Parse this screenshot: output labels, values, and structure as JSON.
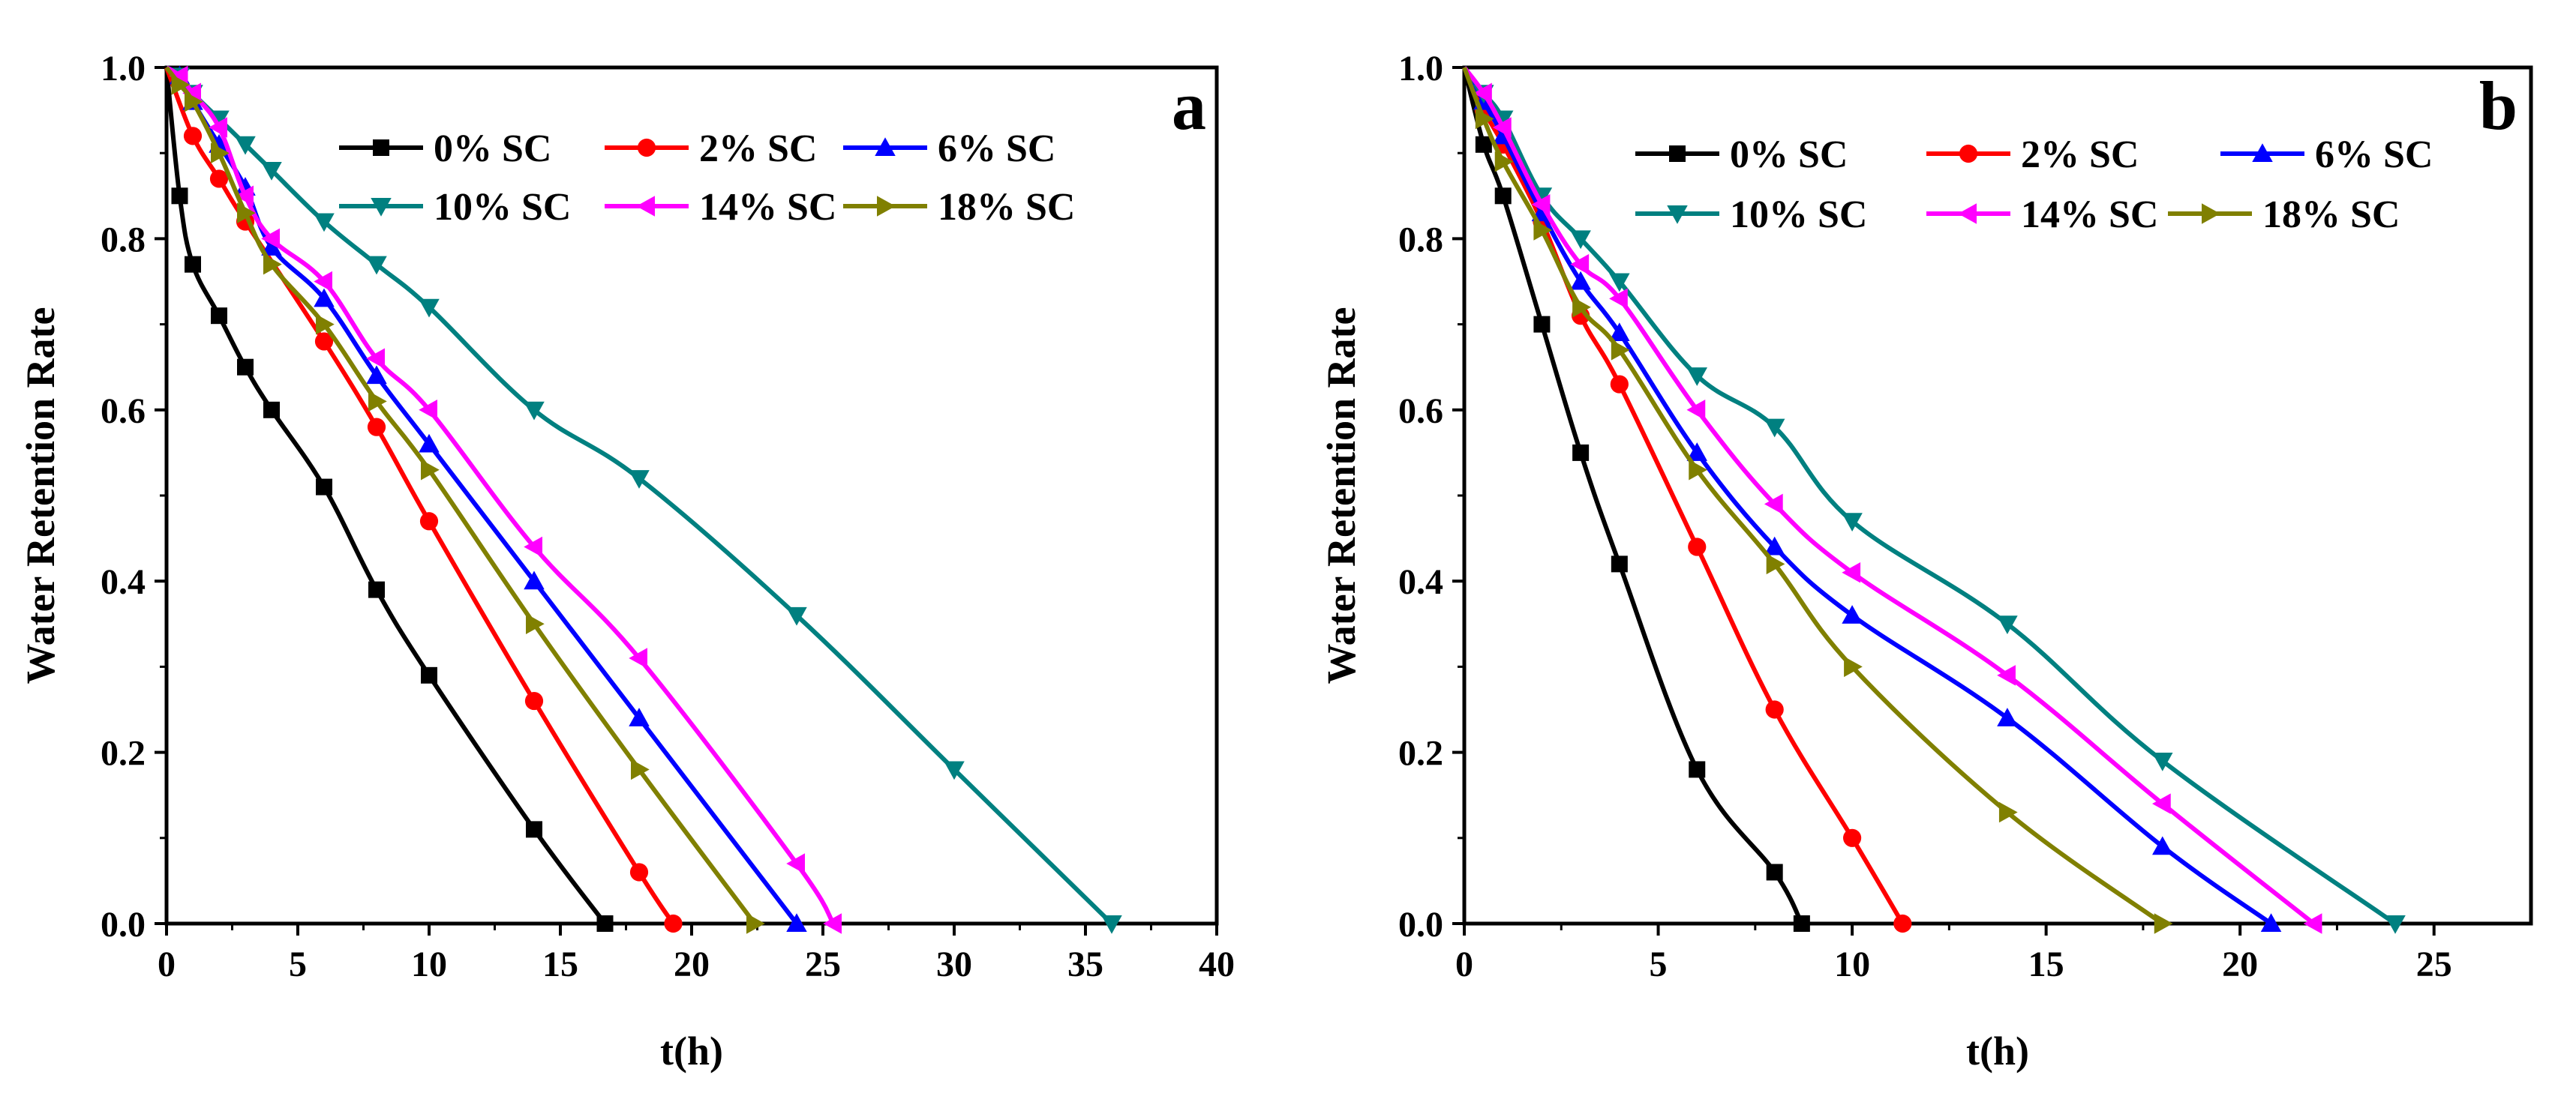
{
  "chart_data": [
    {
      "type": "line",
      "panel_label": "a",
      "xlabel": "t(h)",
      "ylabel": "Water Retention Rate",
      "xlim": [
        0,
        40
      ],
      "ylim": [
        0,
        1.0
      ],
      "xticks": [
        "0",
        "5",
        "10",
        "15",
        "20",
        "25",
        "30",
        "35",
        "40"
      ],
      "yticks": [
        "0.0",
        "0.2",
        "0.4",
        "0.6",
        "0.8",
        "1.0"
      ],
      "grid": false,
      "legend": "top-right",
      "series": [
        {
          "name": "0% SC",
          "color": "#000000",
          "marker": "square",
          "x": [
            0,
            0.5,
            1,
            2,
            3,
            4,
            6,
            8,
            10,
            14,
            16.7
          ],
          "y": [
            1.0,
            0.85,
            0.77,
            0.71,
            0.65,
            0.6,
            0.51,
            0.39,
            0.29,
            0.11,
            0.0
          ]
        },
        {
          "name": "2% SC",
          "color": "#ff0000",
          "marker": "circle",
          "x": [
            0,
            1,
            2,
            3,
            6,
            8,
            10,
            14,
            18,
            19.3
          ],
          "y": [
            1.0,
            0.92,
            0.87,
            0.82,
            0.68,
            0.58,
            0.47,
            0.26,
            0.06,
            0.0
          ]
        },
        {
          "name": "6% SC",
          "color": "#0000ff",
          "marker": "triangle-up",
          "x": [
            0,
            0.5,
            1,
            2,
            3,
            4,
            6,
            8,
            10,
            14,
            18,
            24
          ],
          "y": [
            1.0,
            0.99,
            0.96,
            0.91,
            0.86,
            0.79,
            0.73,
            0.64,
            0.56,
            0.4,
            0.24,
            0.0
          ]
        },
        {
          "name": "10% SC",
          "color": "#008080",
          "marker": "triangle-down",
          "x": [
            0,
            0.5,
            1,
            2,
            3,
            4,
            6,
            8,
            10,
            14,
            18,
            24,
            30,
            36
          ],
          "y": [
            1.0,
            0.99,
            0.97,
            0.94,
            0.91,
            0.88,
            0.82,
            0.77,
            0.72,
            0.6,
            0.52,
            0.36,
            0.18,
            0.0
          ]
        },
        {
          "name": "14% SC",
          "color": "#ff00ff",
          "marker": "triangle-left",
          "x": [
            0,
            0.5,
            1,
            2,
            3,
            4,
            6,
            8,
            10,
            14,
            18,
            24,
            25.4
          ],
          "y": [
            1.0,
            0.99,
            0.97,
            0.93,
            0.85,
            0.8,
            0.75,
            0.66,
            0.6,
            0.44,
            0.31,
            0.07,
            0.0
          ]
        },
        {
          "name": "18% SC",
          "color": "#808000",
          "marker": "triangle-right",
          "x": [
            0,
            0.5,
            1,
            2,
            3,
            4,
            6,
            8,
            10,
            14,
            18,
            22.4
          ],
          "y": [
            1.0,
            0.98,
            0.96,
            0.9,
            0.83,
            0.77,
            0.7,
            0.61,
            0.53,
            0.35,
            0.18,
            0.0
          ]
        }
      ]
    },
    {
      "type": "line",
      "panel_label": "b",
      "xlabel": "t(h)",
      "ylabel": "Water Retention Rate",
      "xlim": [
        0,
        27.5
      ],
      "ylim": [
        0,
        1.0
      ],
      "xticks": [
        "0",
        "5",
        "10",
        "15",
        "20",
        "25"
      ],
      "yticks": [
        "0.0",
        "0.2",
        "0.4",
        "0.6",
        "0.8",
        "1.0"
      ],
      "grid": false,
      "legend": "top-right",
      "series": [
        {
          "name": "0% SC",
          "color": "#000000",
          "marker": "square",
          "x": [
            0,
            0.5,
            1,
            2,
            3,
            4,
            6,
            8,
            8.7
          ],
          "y": [
            1.0,
            0.91,
            0.85,
            0.7,
            0.55,
            0.42,
            0.18,
            0.06,
            0.0
          ]
        },
        {
          "name": "2% SC",
          "color": "#ff0000",
          "marker": "circle",
          "x": [
            0,
            0.5,
            1,
            2,
            3,
            4,
            6,
            8,
            10,
            11.3
          ],
          "y": [
            1.0,
            0.95,
            0.91,
            0.82,
            0.71,
            0.63,
            0.44,
            0.25,
            0.1,
            0.0
          ]
        },
        {
          "name": "6% SC",
          "color": "#0000ff",
          "marker": "triangle-up",
          "x": [
            0,
            0.5,
            1,
            2,
            3,
            4,
            6,
            8,
            10,
            14,
            18,
            20.8
          ],
          "y": [
            1.0,
            0.96,
            0.92,
            0.83,
            0.75,
            0.69,
            0.55,
            0.44,
            0.36,
            0.24,
            0.09,
            0.0
          ]
        },
        {
          "name": "10% SC",
          "color": "#008080",
          "marker": "triangle-down",
          "x": [
            0,
            0.5,
            1,
            2,
            3,
            4,
            6,
            8,
            10,
            14,
            18,
            24
          ],
          "y": [
            1.0,
            0.97,
            0.94,
            0.85,
            0.8,
            0.75,
            0.64,
            0.58,
            0.47,
            0.35,
            0.19,
            0.0
          ]
        },
        {
          "name": "14% SC",
          "color": "#ff00ff",
          "marker": "triangle-left",
          "x": [
            0,
            0.5,
            1,
            2,
            3,
            4,
            6,
            8,
            10,
            14,
            18,
            21.9
          ],
          "y": [
            1.0,
            0.97,
            0.93,
            0.84,
            0.77,
            0.73,
            0.6,
            0.49,
            0.41,
            0.29,
            0.14,
            0.0
          ]
        },
        {
          "name": "18% SC",
          "color": "#808000",
          "marker": "triangle-right",
          "x": [
            0,
            0.5,
            1,
            2,
            3,
            4,
            6,
            8,
            10,
            14,
            18
          ],
          "y": [
            1.0,
            0.94,
            0.89,
            0.81,
            0.72,
            0.67,
            0.53,
            0.42,
            0.3,
            0.13,
            0.0
          ]
        }
      ]
    }
  ]
}
